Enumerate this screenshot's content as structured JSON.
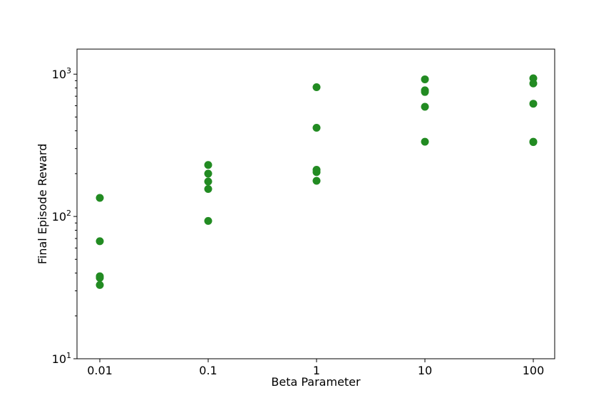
{
  "chart_data": {
    "type": "scatter",
    "title": "",
    "xlabel": "Beta Parameter",
    "ylabel": "Final Episode Reward",
    "x_scale": "categorical",
    "y_scale": "log",
    "ylim": [
      10,
      1500
    ],
    "grid": false,
    "categories": [
      "0.01",
      "0.1",
      "1",
      "10",
      "100"
    ],
    "y_ticks": [
      {
        "value": 10,
        "base": "10",
        "exp": "1"
      },
      {
        "value": 100,
        "base": "10",
        "exp": "2"
      },
      {
        "value": 1000,
        "base": "10",
        "exp": "3"
      }
    ],
    "marker_color": "#228b22",
    "points": [
      {
        "x": "0.01",
        "y": 135
      },
      {
        "x": "0.01",
        "y": 67
      },
      {
        "x": "0.01",
        "y": 38
      },
      {
        "x": "0.01",
        "y": 37
      },
      {
        "x": "0.01",
        "y": 33
      },
      {
        "x": "0.1",
        "y": 230
      },
      {
        "x": "0.1",
        "y": 200
      },
      {
        "x": "0.1",
        "y": 176
      },
      {
        "x": "0.1",
        "y": 156
      },
      {
        "x": "0.1",
        "y": 93
      },
      {
        "x": "1",
        "y": 810
      },
      {
        "x": "1",
        "y": 420
      },
      {
        "x": "1",
        "y": 213
      },
      {
        "x": "1",
        "y": 205
      },
      {
        "x": "1",
        "y": 178
      },
      {
        "x": "10",
        "y": 920
      },
      {
        "x": "10",
        "y": 770
      },
      {
        "x": "10",
        "y": 750
      },
      {
        "x": "10",
        "y": 590
      },
      {
        "x": "10",
        "y": 335
      },
      {
        "x": "100",
        "y": 935
      },
      {
        "x": "100",
        "y": 860
      },
      {
        "x": "100",
        "y": 620
      },
      {
        "x": "100",
        "y": 335
      },
      {
        "x": "100",
        "y": 333
      }
    ]
  }
}
